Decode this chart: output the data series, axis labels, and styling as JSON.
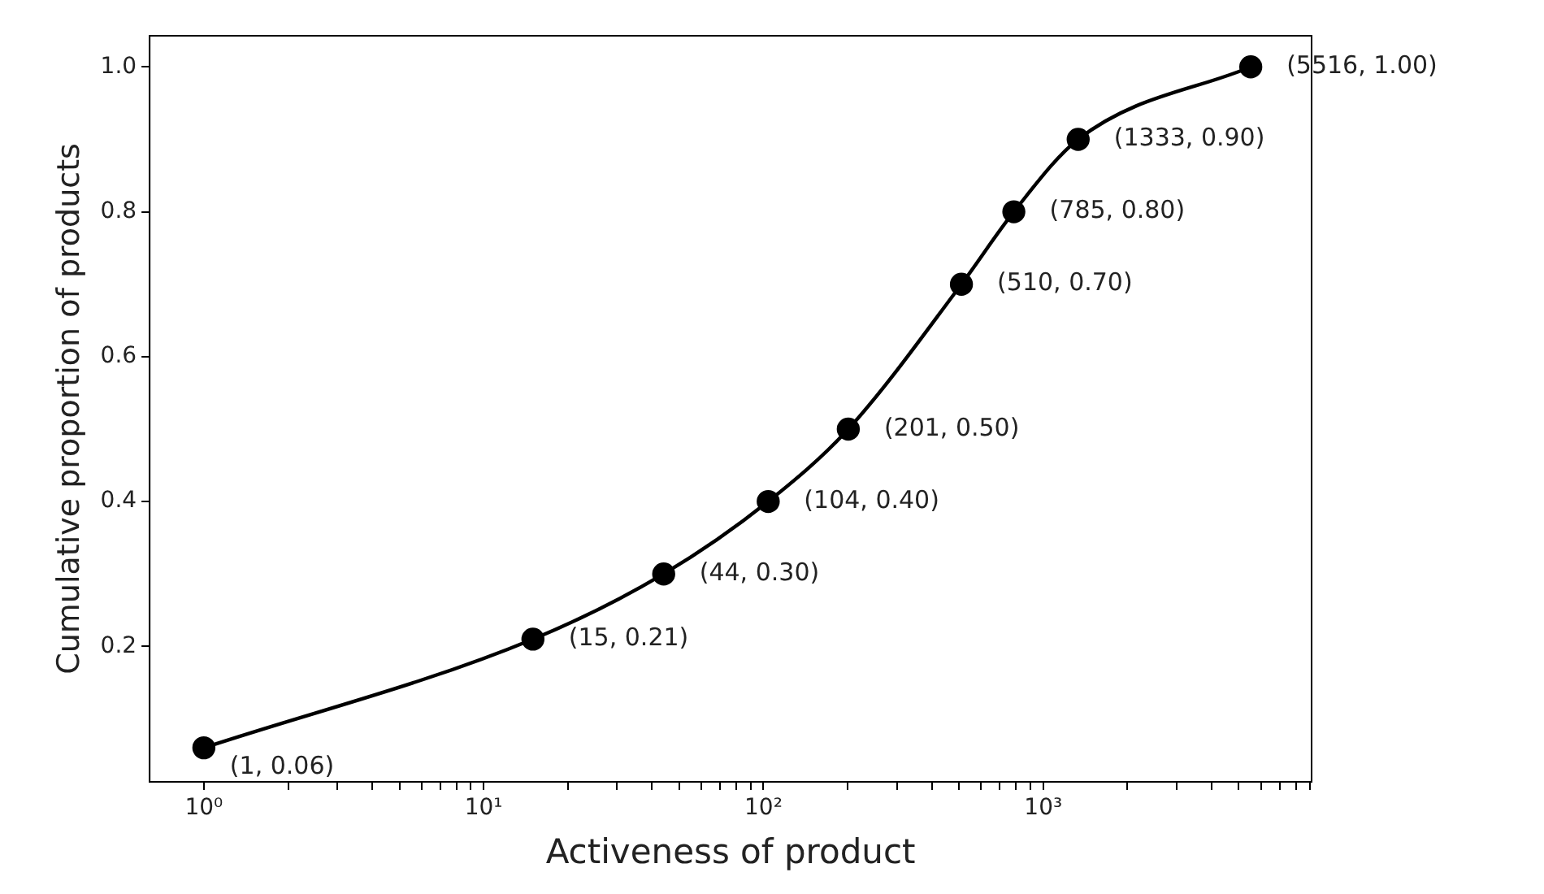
{
  "chart_data": {
    "type": "line",
    "xlabel": "Activeness of product",
    "ylabel": "Cumulative proportion of products",
    "x": [
      1,
      15,
      44,
      104,
      201,
      510,
      785,
      1333,
      5516
    ],
    "values": [
      0.06,
      0.21,
      0.3,
      0.4,
      0.5,
      0.7,
      0.8,
      0.9,
      1.0
    ],
    "value_labels": [
      "(1, 0.06)",
      "(15, 0.21)",
      "(44, 0.30)",
      "(104, 0.40)",
      "(201, 0.50)",
      "(510, 0.70)",
      "(785, 0.80)",
      "(1333, 0.90)",
      "(5516, 1.00)"
    ],
    "color": "#000000",
    "marker": "circle",
    "line_style": "solid",
    "log": "x",
    "grid": false,
    "legend": false,
    "xlim": [
      0.64,
      9100
    ],
    "ylim": [
      0.013,
      1.043
    ],
    "xticks": [
      {
        "value": 1,
        "label": "10⁰"
      },
      {
        "value": 2,
        "label": null
      },
      {
        "value": 3,
        "label": null
      },
      {
        "value": 4,
        "label": null
      },
      {
        "value": 5,
        "label": null
      },
      {
        "value": 6,
        "label": null
      },
      {
        "value": 7,
        "label": null
      },
      {
        "value": 8,
        "label": null
      },
      {
        "value": 9,
        "label": null
      },
      {
        "value": 10,
        "label": "10¹"
      },
      {
        "value": 20,
        "label": null
      },
      {
        "value": 30,
        "label": null
      },
      {
        "value": 40,
        "label": null
      },
      {
        "value": 50,
        "label": null
      },
      {
        "value": 60,
        "label": null
      },
      {
        "value": 70,
        "label": null
      },
      {
        "value": 80,
        "label": null
      },
      {
        "value": 90,
        "label": null
      },
      {
        "value": 100,
        "label": "10²"
      },
      {
        "value": 200,
        "label": null
      },
      {
        "value": 300,
        "label": null
      },
      {
        "value": 400,
        "label": null
      },
      {
        "value": 500,
        "label": null
      },
      {
        "value": 600,
        "label": null
      },
      {
        "value": 700,
        "label": null
      },
      {
        "value": 800,
        "label": null
      },
      {
        "value": 900,
        "label": null
      },
      {
        "value": 1000,
        "label": "10³"
      },
      {
        "value": 2000,
        "label": null
      },
      {
        "value": 3000,
        "label": null
      },
      {
        "value": 4000,
        "label": null
      },
      {
        "value": 5000,
        "label": null
      },
      {
        "value": 6000,
        "label": null
      },
      {
        "value": 7000,
        "label": null
      },
      {
        "value": 8000,
        "label": null
      },
      {
        "value": 9000,
        "label": null
      }
    ],
    "yticks": [
      0.2,
      0.4,
      0.6,
      0.8,
      {
        "value": 1,
        "label": "1.0"
      }
    ]
  }
}
